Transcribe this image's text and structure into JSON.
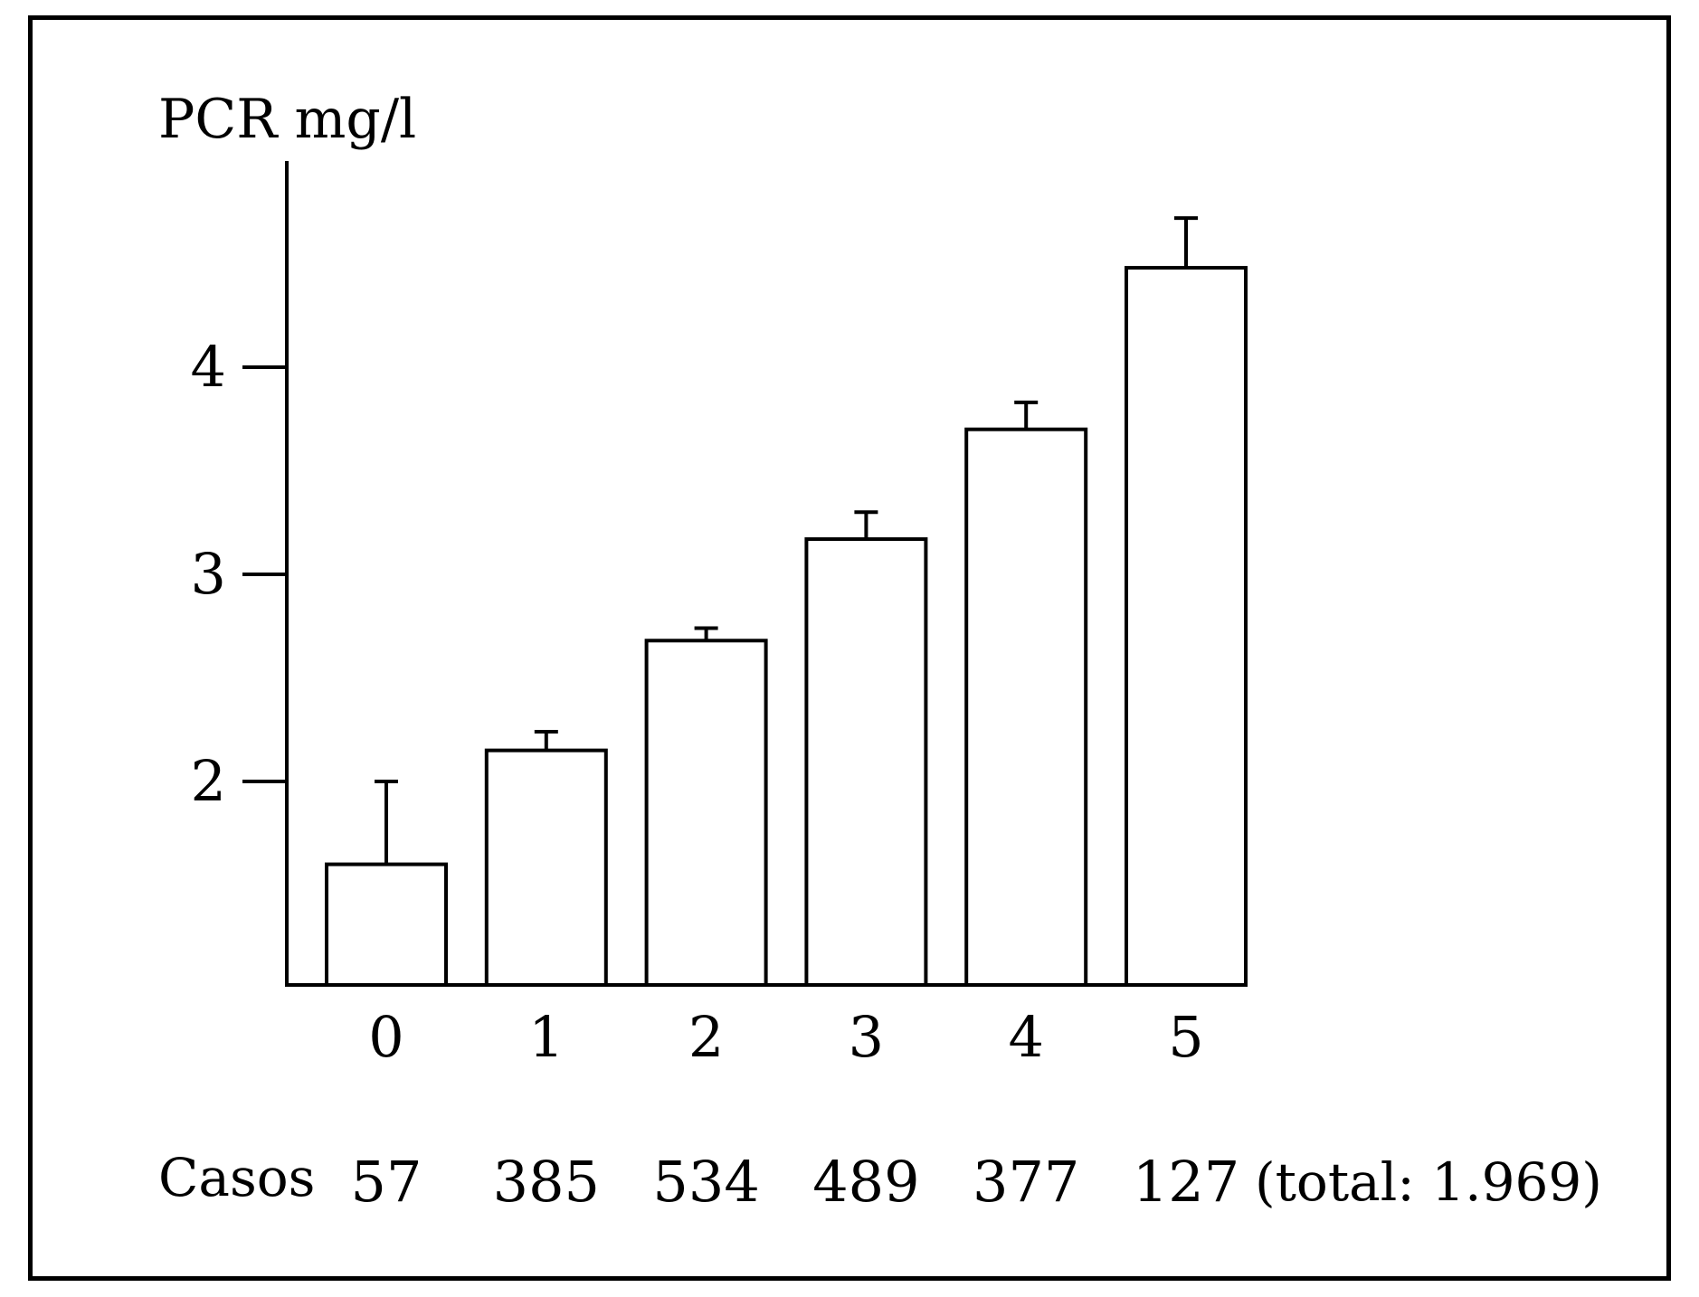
{
  "chart_data": {
    "type": "bar",
    "ylabel": "PCR mg/l",
    "xlabel": "",
    "ylim": [
      1,
      5
    ],
    "yticks": [
      2,
      3,
      4
    ],
    "categories": [
      "0",
      "1",
      "2",
      "3",
      "4",
      "5"
    ],
    "values": [
      1.6,
      2.15,
      2.68,
      3.17,
      3.7,
      4.48
    ],
    "error_upper": [
      2.0,
      2.24,
      2.74,
      3.3,
      3.83,
      4.72
    ],
    "cases_label": "Casos",
    "cases": [
      "57",
      "385",
      "534",
      "489",
      "377",
      "127"
    ],
    "cases_note": "(total:  1.969)",
    "grid": false,
    "bar_fill": "#ffffff",
    "stroke_color": "#000000"
  }
}
